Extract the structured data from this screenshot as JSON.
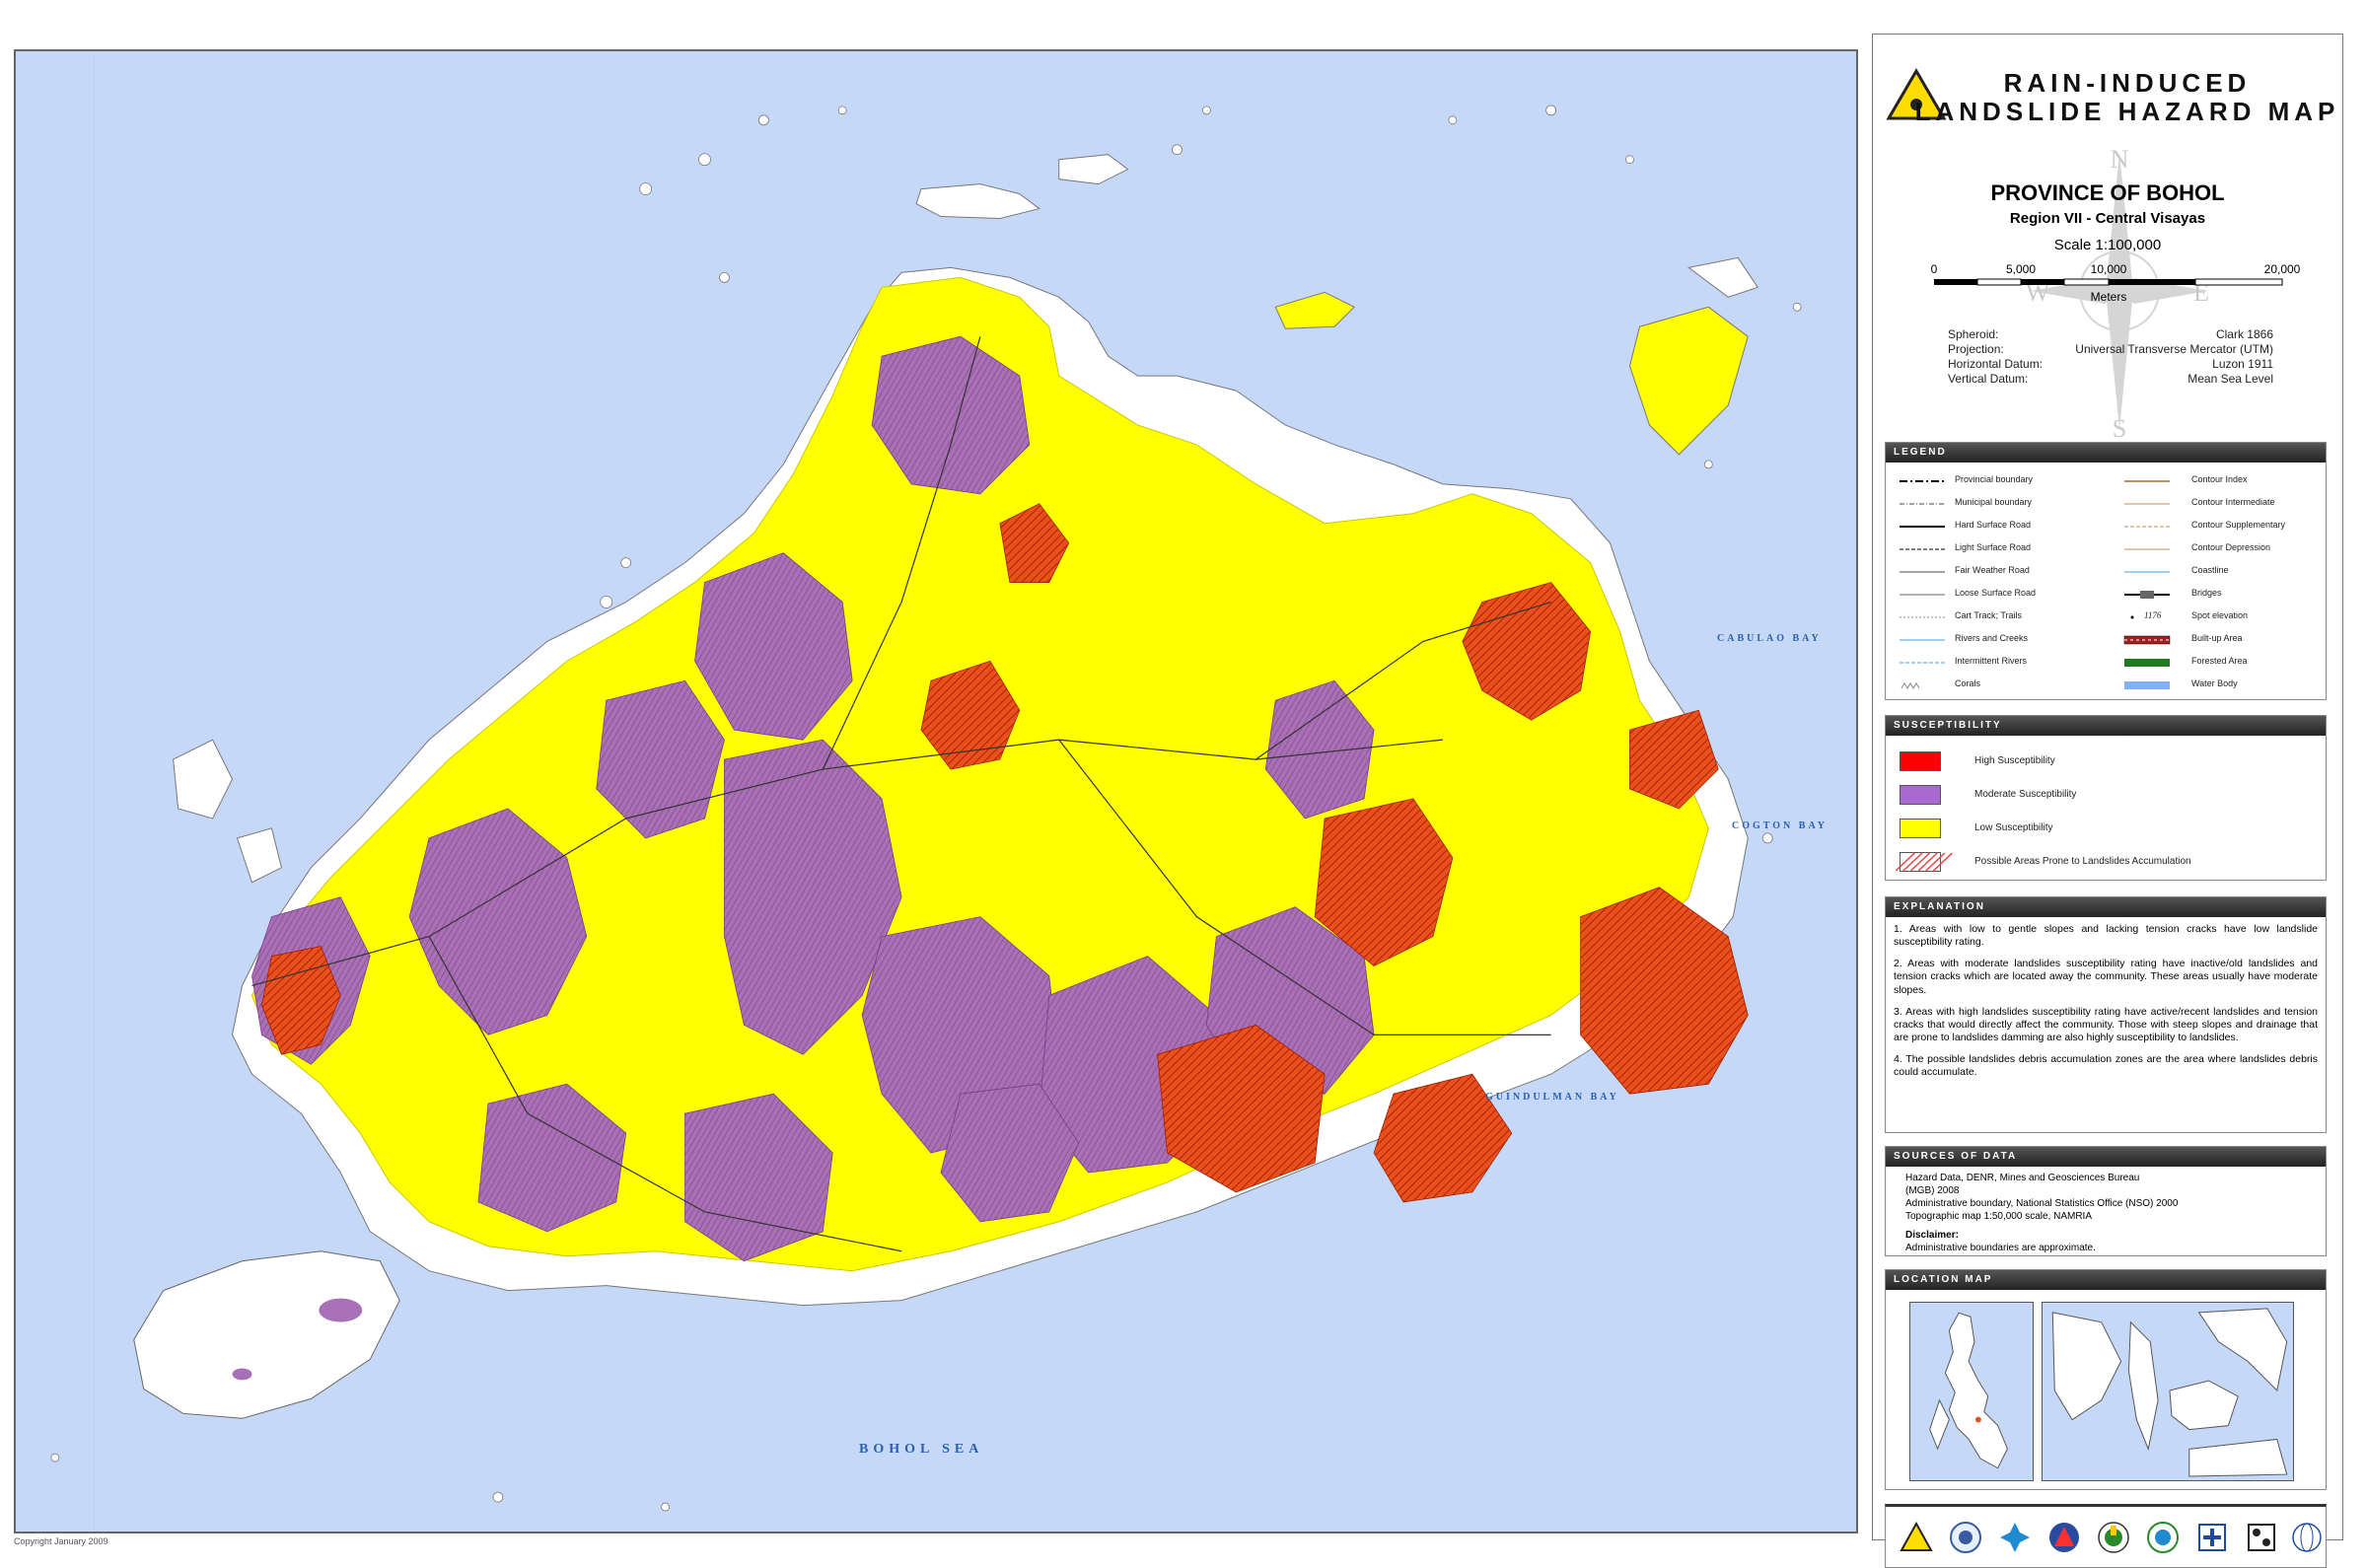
{
  "map": {
    "labels": {
      "bohol_sea": "BOHOL SEA",
      "cabulao_bay": "CABULAO BAY",
      "cogton_bay": "COGTON BAY",
      "guindulman_bay": "GUINDULMAN BAY"
    },
    "copyright": "Copyright January 2009",
    "colors": {
      "sea": "#c6d8f8",
      "land": "#ffffff",
      "low": "#ffff00",
      "moderate": "#a870b8",
      "high": "#e8501e"
    }
  },
  "title": {
    "line1": "RAIN-INDUCED",
    "line2": "LANDSLIDE HAZARD MAP",
    "province": "PROVINCE OF BOHOL",
    "region": "Region VII - Central Visayas",
    "scale": "Scale 1:100,000",
    "scale_ticks": [
      "0",
      "5,000",
      "10,000",
      "20,000"
    ],
    "scale_unit": "Meters",
    "compass": [
      "N",
      "E",
      "S",
      "W"
    ]
  },
  "datum": [
    {
      "key": "Spheroid:",
      "value": "Clark 1866"
    },
    {
      "key": "Projection:",
      "value": "Universal Transverse Mercator (UTM)"
    },
    {
      "key": "Horizontal Datum:",
      "value": "Luzon 1911"
    },
    {
      "key": "Vertical Datum:",
      "value": "Mean Sea Level"
    }
  ],
  "legend": {
    "heading": "LEGEND",
    "left": [
      "Provincial boundary",
      "Municipal boundary",
      "Hard Surface Road",
      "Light Surface Road",
      "Fair Weather Road",
      "Loose Surface Road",
      "Cart Track; Trails",
      "Rivers and Creeks",
      "Intermittent Rivers",
      "Corals"
    ],
    "right": [
      "Contour Index",
      "Contour Intermediate",
      "Contour Supplementary",
      "Contour Depression",
      "Coastline",
      "Bridges",
      "Spot elevation",
      "Built-up Area",
      "Forested Area",
      "Water Body"
    ],
    "spot_value": "1176"
  },
  "susceptibility": {
    "heading": "SUSCEPTIBILITY",
    "items": [
      {
        "label": "High Susceptibility",
        "color": "#ff0000"
      },
      {
        "label": "Moderate Susceptibility",
        "color": "#a86ad0"
      },
      {
        "label": "Low Susceptibility",
        "color": "#ffff00"
      },
      {
        "label": "Possible Areas Prone to Landslides Accumulation",
        "color": "#e84040"
      }
    ]
  },
  "explanation": {
    "heading": "EXPLANATION",
    "paragraphs": [
      "1. Areas with  low to gentle  slopes and lacking tension cracks have low landslide susceptibility rating.",
      "2. Areas with moderate landslides susceptibility rating have inactive/old landslides and tension cracks which are located away the community. These areas usually have moderate slopes.",
      "3. Areas with high landslides susceptibility rating have active/recent landslides and tension cracks that would directly affect the community. Those with steep slopes and drainage that are prone to landslides damming are also highly susceptibility to landslides.",
      "4. The possible landslides debris accumulation zones are the area where landslides debris could accumulate."
    ]
  },
  "sources": {
    "heading": "SOURCES OF DATA",
    "lines": [
      "Hazard Data, DENR, Mines and Geosciences Bureau",
      "(MGB) 2008",
      "Administrative boundary, National Statistics Office (NSO) 2000",
      "Topographic map 1:50,000 scale, NAMRIA"
    ],
    "disclaimer_label": "Disclaimer:",
    "disclaimer": "Administrative boundaries are approximate."
  },
  "location_map": {
    "heading": "LOCATION MAP"
  }
}
